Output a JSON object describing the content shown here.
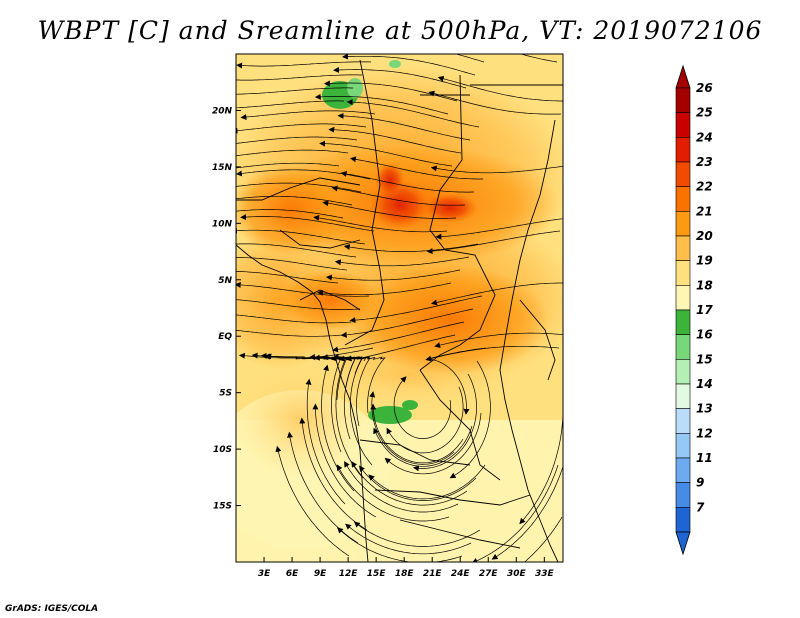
{
  "title": "WBPT [C] and Sreamline at 500hPa, VT: 2019072106",
  "credit": "GrADS: IGES/COLA",
  "map": {
    "lon_range": [
      0,
      35
    ],
    "lat_range": [
      -20,
      25
    ],
    "lon_ticks": [
      {
        "value": 3,
        "label": "3E"
      },
      {
        "value": 6,
        "label": "6E"
      },
      {
        "value": 9,
        "label": "9E"
      },
      {
        "value": 12,
        "label": "12E"
      },
      {
        "value": 15,
        "label": "15E"
      },
      {
        "value": 18,
        "label": "18E"
      },
      {
        "value": 21,
        "label": "21E"
      },
      {
        "value": 24,
        "label": "24E"
      },
      {
        "value": 27,
        "label": "27E"
      },
      {
        "value": 30,
        "label": "30E"
      },
      {
        "value": 33,
        "label": "33E"
      }
    ],
    "lat_ticks": [
      {
        "value": 20,
        "label": "20N"
      },
      {
        "value": 15,
        "label": "15N"
      },
      {
        "value": 10,
        "label": "10N"
      },
      {
        "value": 5,
        "label": "5N"
      },
      {
        "value": 0,
        "label": "EQ"
      },
      {
        "value": -5,
        "label": "5S"
      },
      {
        "value": -10,
        "label": "10S"
      },
      {
        "value": -15,
        "label": "15S"
      }
    ]
  },
  "colorbar": {
    "levels": [
      {
        "label": "26",
        "color": "#a50000"
      },
      {
        "label": "25",
        "color": "#c80000"
      },
      {
        "label": "24",
        "color": "#e11f00"
      },
      {
        "label": "23",
        "color": "#f04b00"
      },
      {
        "label": "22",
        "color": "#fa7300"
      },
      {
        "label": "21",
        "color": "#fd9a14"
      },
      {
        "label": "20",
        "color": "#ffbe4b"
      },
      {
        "label": "19",
        "color": "#ffe07e"
      },
      {
        "label": "18",
        "color": "#fff5b4"
      },
      {
        "label": "17",
        "color": "#3cb43c"
      },
      {
        "label": "16",
        "color": "#78d778"
      },
      {
        "label": "15",
        "color": "#b4f0b4"
      },
      {
        "label": "14",
        "color": "#e1fae1"
      },
      {
        "label": "13",
        "color": "#b9dcfa"
      },
      {
        "label": "12",
        "color": "#96c8f5"
      },
      {
        "label": "11",
        "color": "#6eaaf0"
      },
      {
        "label": "9",
        "color": "#468ce6"
      },
      {
        "label": "7",
        "color": "#1e64d2"
      }
    ],
    "bottom_color": "#1e64d2",
    "top_color": "#a50000"
  }
}
